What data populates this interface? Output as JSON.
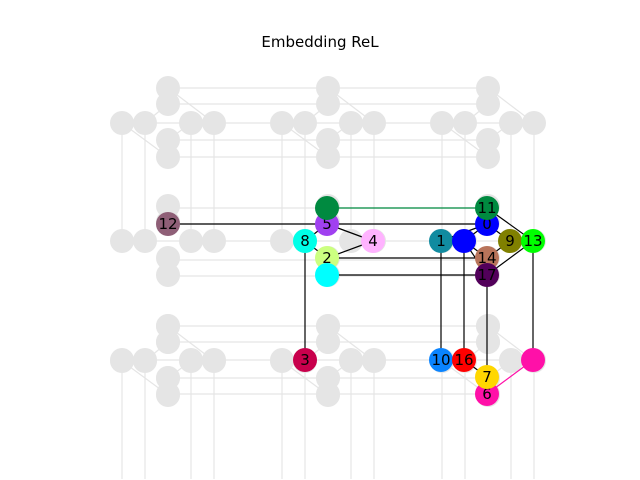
{
  "title": "Embedding ReL",
  "graph": {
    "background_node_color": "#e5e5e5",
    "background_edge_color": "#e5e5e5",
    "nodes": [
      {
        "id": "0",
        "label": "0",
        "color": "#0000ff"
      },
      {
        "id": "1",
        "label": "1",
        "color": "#118ba0"
      },
      {
        "id": "2",
        "label": "2",
        "color": "#ccff80"
      },
      {
        "id": "3",
        "label": "3",
        "color": "#c8004c"
      },
      {
        "id": "4",
        "label": "4",
        "color": "#ffb3ff"
      },
      {
        "id": "5",
        "label": "5",
        "color": "#a040f0"
      },
      {
        "id": "6",
        "label": "6",
        "color": "#ff10a8"
      },
      {
        "id": "7",
        "label": "7",
        "color": "#ffd700"
      },
      {
        "id": "8",
        "label": "8",
        "color": "#00ffe8"
      },
      {
        "id": "9",
        "label": "9",
        "color": "#808000"
      },
      {
        "id": "10",
        "label": "10",
        "color": "#0a84ff"
      },
      {
        "id": "11",
        "label": "11",
        "color": "#008a40"
      },
      {
        "id": "12",
        "label": "12",
        "color": "#8f5f77"
      },
      {
        "id": "13",
        "label": "13",
        "color": "#00ff00"
      },
      {
        "id": "14",
        "label": "14",
        "color": "#b8745a"
      },
      {
        "id": "16",
        "label": "16",
        "color": "#ff0000"
      },
      {
        "id": "17",
        "label": "17",
        "color": "#52005a"
      },
      {
        "id": "u1",
        "label": "",
        "color": "#0000ff"
      },
      {
        "id": "u2",
        "label": "",
        "color": "#008a40"
      },
      {
        "id": "u3",
        "label": "",
        "color": "#00ffff"
      },
      {
        "id": "u4",
        "label": "",
        "color": "#ff10a8"
      }
    ],
    "edges": [
      {
        "from": "u2",
        "to": "11",
        "color": "#008a40"
      },
      {
        "from": "12",
        "to": "0",
        "color": "#000000"
      },
      {
        "from": "5",
        "to": "4",
        "color": "#000000"
      },
      {
        "from": "5",
        "to": "8",
        "color": "#000000"
      },
      {
        "from": "8",
        "to": "2",
        "color": "#000000"
      },
      {
        "from": "4",
        "to": "2",
        "color": "#000000"
      },
      {
        "from": "8",
        "to": "3",
        "color": "#000000"
      },
      {
        "from": "2",
        "to": "14",
        "color": "#000000"
      },
      {
        "from": "u3",
        "to": "17",
        "color": "#000000"
      },
      {
        "from": "1",
        "to": "0",
        "color": "#000000"
      },
      {
        "from": "1",
        "to": "10",
        "color": "#000000"
      },
      {
        "from": "0",
        "to": "11",
        "color": "#000000"
      },
      {
        "from": "0",
        "to": "u1",
        "color": "#000000"
      },
      {
        "from": "0",
        "to": "9",
        "color": "#000000"
      },
      {
        "from": "11",
        "to": "13",
        "color": "#000000"
      },
      {
        "from": "u1",
        "to": "14",
        "color": "#000000"
      },
      {
        "from": "u1",
        "to": "17",
        "color": "#000000"
      },
      {
        "from": "u1",
        "to": "16",
        "color": "#000000"
      },
      {
        "from": "9",
        "to": "13",
        "color": "#000000"
      },
      {
        "from": "9",
        "to": "14",
        "color": "#000000"
      },
      {
        "from": "13",
        "to": "17",
        "color": "#000000"
      },
      {
        "from": "13",
        "to": "u4",
        "color": "#000000"
      },
      {
        "from": "14",
        "to": "17",
        "color": "#000000"
      },
      {
        "from": "14",
        "to": "7",
        "color": "#000000"
      },
      {
        "from": "16",
        "to": "7",
        "color": "#000000"
      },
      {
        "from": "10",
        "to": "16",
        "color": "#000000"
      },
      {
        "from": "7",
        "to": "6",
        "color": "#000000"
      },
      {
        "from": "6",
        "to": "u4",
        "color": "#ff10a8"
      }
    ]
  }
}
